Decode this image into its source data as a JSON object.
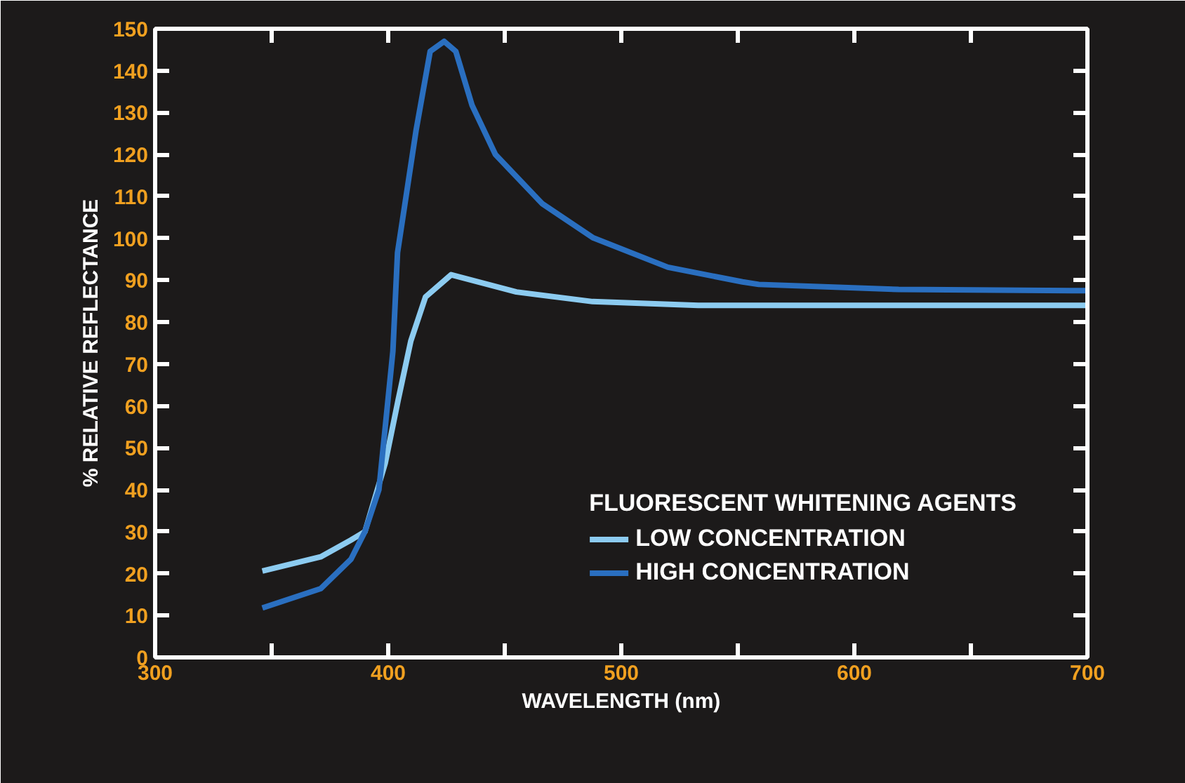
{
  "chart_data": {
    "type": "line",
    "xlabel": "WAVELENGTH (nm)",
    "ylabel": "% RELATIVE REFLECTANCE",
    "legend_title": "FLUORESCENT WHITENING AGENTS",
    "legend": "bottom right",
    "grid": false,
    "marker": "none",
    "line_style": "solid",
    "xlim": [
      300,
      700
    ],
    "ylim": [
      0,
      150
    ],
    "xticks": [
      300,
      {
        "value": 350,
        "label": null
      },
      400,
      {
        "value": 450,
        "label": null
      },
      500,
      {
        "value": 550,
        "label": null
      },
      600,
      {
        "value": 650,
        "label": null
      },
      700
    ],
    "yticks": [
      0,
      10,
      20,
      30,
      40,
      50,
      60,
      70,
      80,
      90,
      100,
      110,
      120,
      130,
      140,
      150
    ],
    "series": [
      {
        "name": "LOW CONCENTRATION",
        "color": "#8ccbf0",
        "x": [
          346,
          371,
          384,
          390,
          398.7,
          404.3,
          409.7,
          416,
          427,
          455,
          487.7,
          533,
          600,
          700
        ],
        "values": [
          20.6,
          24,
          28,
          30,
          46.3,
          61.5,
          75.5,
          86,
          91.3,
          87.2,
          84.9,
          84,
          84,
          84
        ]
      },
      {
        "name": "HIGH CONCENTRATION",
        "color": "#2a6fc0",
        "x": [
          346,
          371,
          384,
          390,
          396,
          402,
          404,
          412,
          418,
          424,
          429,
          436,
          446,
          466,
          488,
          520,
          552,
          559,
          619,
          700
        ],
        "values": [
          11.8,
          16.4,
          23.4,
          30,
          40,
          73,
          96.6,
          125.9,
          144.6,
          147,
          144.6,
          131.7,
          120,
          108.3,
          100.1,
          93.1,
          89.6,
          89,
          87.8,
          87.5
        ]
      }
    ]
  }
}
